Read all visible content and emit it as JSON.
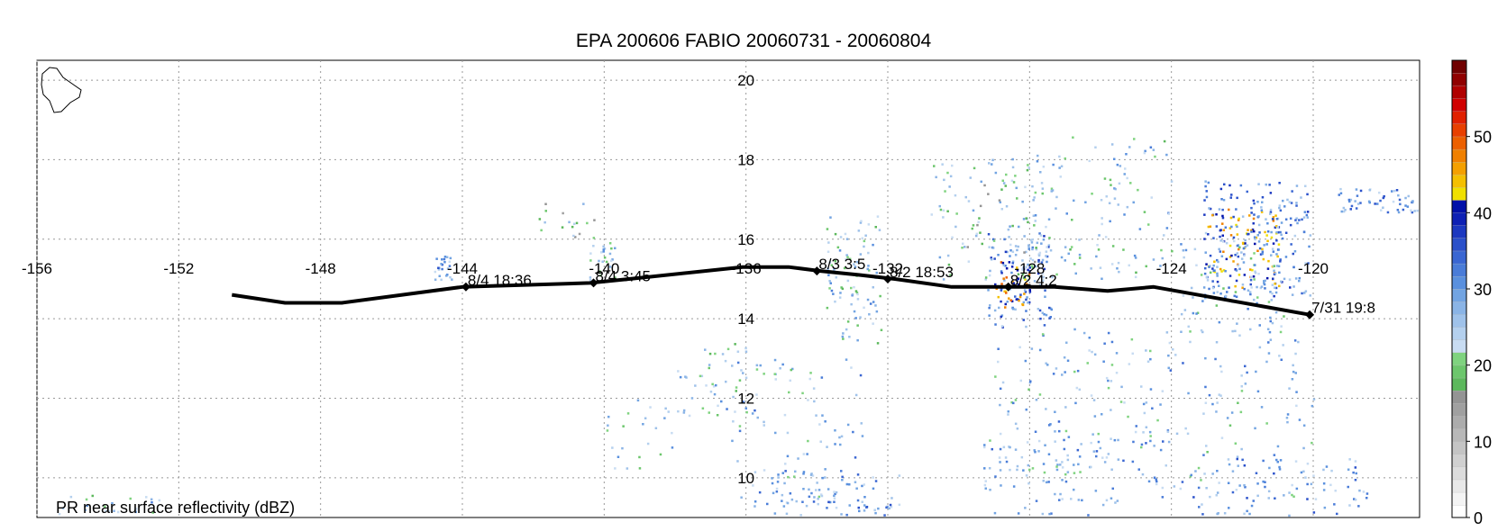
{
  "title": "EPA 200606 FABIO 20060731 - 20060804",
  "footer_label": "PR near surface reflectivity (dBZ)",
  "map": {
    "lon_range": [
      -156,
      -117
    ],
    "lat_range": [
      9,
      20.5
    ],
    "lon_ticks": [
      {
        "value": -156,
        "label": "-156"
      },
      {
        "value": -152,
        "label": "-152"
      },
      {
        "value": -148,
        "label": "-148"
      },
      {
        "value": -144,
        "label": "-144"
      },
      {
        "value": -140,
        "label": "-140"
      },
      {
        "value": -136,
        "label": "-136"
      },
      {
        "value": -132,
        "label": "-132"
      },
      {
        "value": -128,
        "label": "-128"
      },
      {
        "value": -124,
        "label": "-124"
      },
      {
        "value": -120,
        "label": "-120"
      }
    ],
    "lat_ticks": [
      {
        "value": 20,
        "label": "20"
      },
      {
        "value": 18,
        "label": "18"
      },
      {
        "value": 16,
        "label": "16"
      },
      {
        "value": 14,
        "label": "14"
      },
      {
        "value": 12,
        "label": "12"
      },
      {
        "value": 10,
        "label": "10"
      }
    ],
    "gridlines": "dotted",
    "coastline": "Hawaii (Big Island) outline, top-left"
  },
  "track": {
    "path": [
      [
        -120.1,
        14.1
      ],
      [
        -124.5,
        14.8
      ],
      [
        -125.8,
        14.7
      ],
      [
        -127.3,
        14.8
      ],
      [
        -128.6,
        14.8
      ],
      [
        -130.2,
        14.8
      ],
      [
        -131.8,
        15.0
      ],
      [
        -132.8,
        15.1
      ],
      [
        -133.9,
        15.2
      ],
      [
        -134.8,
        15.3
      ],
      [
        -136.1,
        15.3
      ],
      [
        -139.3,
        15.0
      ],
      [
        -140.4,
        14.9
      ],
      [
        -144.0,
        14.8
      ],
      [
        -147.4,
        14.4
      ],
      [
        -149.0,
        14.4
      ],
      [
        -150.5,
        14.6
      ]
    ],
    "markers": [
      {
        "lon": -120.1,
        "lat": 14.1,
        "label": "7/31 19:8"
      },
      {
        "lon": -128.6,
        "lat": 14.8,
        "label": "8/2 4:2"
      },
      {
        "lon": -132.0,
        "lat": 15.0,
        "label": "8/2 18:53"
      },
      {
        "lon": -134.0,
        "lat": 15.2,
        "label": "8/3 3:5"
      },
      {
        "lon": -140.3,
        "lat": 14.9,
        "label": "8/4 3:45"
      },
      {
        "lon": -143.9,
        "lat": 14.8,
        "label": "8/4 18:36"
      }
    ]
  },
  "colorbar": {
    "label": "dBZ",
    "tick_labels": [
      "0",
      "10",
      "20",
      "30",
      "40",
      "50"
    ],
    "range": [
      0,
      60
    ],
    "colors": [
      "#ffffff",
      "#f4f4f4",
      "#e8e8e8",
      "#dcdcdc",
      "#d0d0d0",
      "#c4c4c4",
      "#b8b8b8",
      "#acacac",
      "#a0a0a0",
      "#949494",
      "#5cb85c",
      "#6cc66c",
      "#7fd37f",
      "#c8dcf2",
      "#b4d0ee",
      "#9fc2ea",
      "#8ab4e6",
      "#72a4e2",
      "#5a90de",
      "#4a7cd8",
      "#3a66d2",
      "#2a50ca",
      "#1c38c0",
      "#0e20b4",
      "#0010a8",
      "#f0e000",
      "#f4c000",
      "#f4a000",
      "#f08000",
      "#ec6000",
      "#e84000",
      "#e02000",
      "#d00000",
      "#b00000",
      "#900000",
      "#700000"
    ]
  },
  "precip_cells": [
    {
      "lon": -122.0,
      "lat": 15.8,
      "count": 40,
      "spread": 1.2,
      "level": 40,
      "dx": 1.1,
      "dy": 1.0
    },
    {
      "lon": -121.6,
      "lat": 16.0,
      "count": 60,
      "spread": 1.2,
      "level": 30,
      "dx": 1.5,
      "dy": 1.5
    },
    {
      "lon": -122.3,
      "lat": 14.8,
      "count": 30,
      "spread": 1.2,
      "level": 25,
      "dx": 1.5,
      "dy": 1.2
    },
    {
      "lon": -128.3,
      "lat": 15.0,
      "count": 35,
      "spread": 1.2,
      "level": 30,
      "dx": 0.9,
      "dy": 1.2
    },
    {
      "lon": -128.5,
      "lat": 14.9,
      "count": 15,
      "spread": 1.2,
      "level": 42,
      "dx": 0.5,
      "dy": 0.6
    },
    {
      "lon": -129.2,
      "lat": 16.5,
      "count": 40,
      "spread": 1.2,
      "level": 22,
      "dx": 1.6,
      "dy": 1.6
    },
    {
      "lon": -126.0,
      "lat": 16.8,
      "count": 40,
      "spread": 1.2,
      "level": 24,
      "dx": 2.0,
      "dy": 1.8
    },
    {
      "lon": -133.0,
      "lat": 15.0,
      "count": 30,
      "spread": 1.2,
      "level": 24,
      "dx": 0.8,
      "dy": 1.6
    },
    {
      "lon": -117.8,
      "lat": 17.0,
      "count": 25,
      "spread": 1.2,
      "level": 28,
      "dx": 1.5,
      "dy": 0.3
    },
    {
      "lon": -126.5,
      "lat": 12.0,
      "count": 45,
      "spread": 1.2,
      "level": 26,
      "dx": 2.5,
      "dy": 1.8
    },
    {
      "lon": -122.5,
      "lat": 11.5,
      "count": 40,
      "spread": 1.2,
      "level": 26,
      "dx": 2.5,
      "dy": 2.0
    },
    {
      "lon": -134.5,
      "lat": 11.0,
      "count": 30,
      "spread": 1.2,
      "level": 26,
      "dx": 2.0,
      "dy": 2.0
    },
    {
      "lon": -133.5,
      "lat": 9.6,
      "count": 30,
      "spread": 1.2,
      "level": 28,
      "dx": 1.8,
      "dy": 0.6
    },
    {
      "lon": -127.5,
      "lat": 10.0,
      "count": 30,
      "spread": 1.2,
      "level": 26,
      "dx": 2.0,
      "dy": 1.0
    },
    {
      "lon": -121.0,
      "lat": 9.7,
      "count": 30,
      "spread": 1.2,
      "level": 28,
      "dx": 2.5,
      "dy": 0.8
    },
    {
      "lon": -144.5,
      "lat": 15.3,
      "count": 8,
      "spread": 1.2,
      "level": 28,
      "dx": 0.3,
      "dy": 0.3
    },
    {
      "lon": -140.1,
      "lat": 15.5,
      "count": 8,
      "spread": 1.2,
      "level": 24,
      "dx": 0.4,
      "dy": 0.5
    },
    {
      "lon": -141.0,
      "lat": 16.5,
      "count": 6,
      "spread": 1.2,
      "level": 20,
      "dx": 1.0,
      "dy": 0.5
    },
    {
      "lon": -137.0,
      "lat": 12.5,
      "count": 15,
      "spread": 1.2,
      "level": 24,
      "dx": 1.0,
      "dy": 1.0
    },
    {
      "lon": -139.0,
      "lat": 11.0,
      "count": 8,
      "spread": 1.2,
      "level": 24,
      "dx": 1.0,
      "dy": 1.0
    },
    {
      "lon": -154.0,
      "lat": 9.3,
      "count": 8,
      "spread": 1.2,
      "level": 24,
      "dx": 1.5,
      "dy": 0.3
    }
  ]
}
